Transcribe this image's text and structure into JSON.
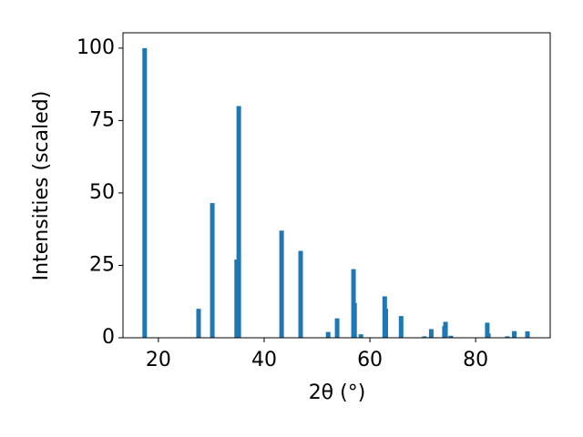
{
  "chart_data": {
    "type": "bar",
    "x_label": "2θ (°)",
    "y_label": "Intensities (scaled)",
    "x": [
      17.4,
      27.6,
      30.2,
      34.8,
      35.2,
      43.3,
      46.9,
      52.1,
      53.8,
      56.9,
      57.1,
      58.3,
      62.8,
      63.0,
      65.9,
      70.3,
      71.6,
      74.1,
      74.3,
      75.3,
      82.2,
      82.4,
      86.0,
      87.3,
      89.8
    ],
    "values": [
      100,
      10,
      46.5,
      27,
      80,
      37,
      30,
      2,
      6.7,
      23.7,
      12,
      1.2,
      14.3,
      10,
      7.5,
      0.5,
      3,
      4,
      5.5,
      0.7,
      5.2,
      1.5,
      0.5,
      2.3,
      2.2
    ],
    "color": "#1f77b4",
    "xlim": [
      13.3,
      94.1
    ],
    "ylim": [
      0,
      105.3
    ],
    "xticks": [
      20,
      40,
      60,
      80
    ],
    "yticks": [
      0,
      25,
      50,
      75,
      100
    ]
  }
}
